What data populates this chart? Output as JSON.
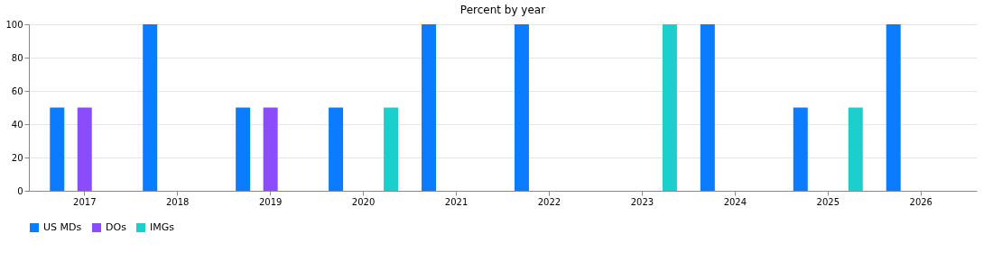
{
  "chart_data": {
    "type": "bar",
    "title": "Percent by year",
    "categories": [
      "2017",
      "2018",
      "2019",
      "2020",
      "2021",
      "2022",
      "2023",
      "2024",
      "2025",
      "2026"
    ],
    "series": [
      {
        "name": "US MDs",
        "color": "#0a7cff",
        "values": [
          50,
          100,
          50,
          50,
          100,
          100,
          0,
          100,
          50,
          100
        ]
      },
      {
        "name": "DOs",
        "color": "#8b4dfb",
        "values": [
          50,
          0,
          50,
          0,
          0,
          0,
          0,
          0,
          0,
          0
        ]
      },
      {
        "name": "IMGs",
        "color": "#1ccfcc",
        "values": [
          0,
          0,
          0,
          50,
          0,
          0,
          100,
          0,
          50,
          0
        ]
      }
    ],
    "ylim": [
      0,
      100
    ],
    "yticks": [
      0,
      20,
      40,
      60,
      80,
      100
    ],
    "grid": "y",
    "legend": "bottom"
  }
}
